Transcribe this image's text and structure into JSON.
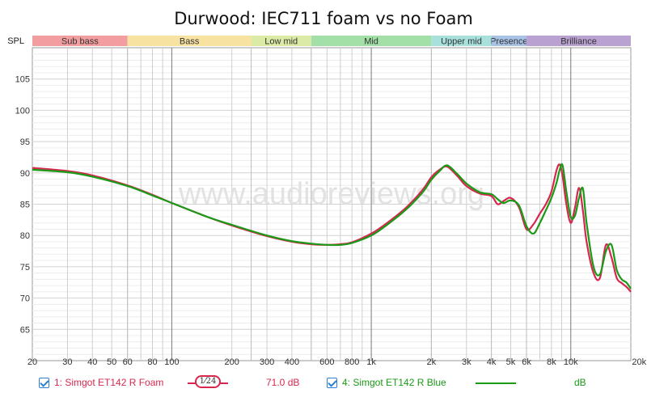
{
  "chart_data": {
    "type": "line",
    "title": "Durwood: IEC711 foam vs no Foam",
    "ylabel": "SPL",
    "xlabel": "",
    "xscale": "log",
    "xlim": [
      20,
      20000
    ],
    "ylim": [
      60,
      110
    ],
    "yticks": [
      65,
      70,
      75,
      80,
      85,
      90,
      95,
      100,
      105
    ],
    "xticks": [
      {
        "v": 20,
        "label": "20"
      },
      {
        "v": 30,
        "label": "30"
      },
      {
        "v": 40,
        "label": "40"
      },
      {
        "v": 50,
        "label": "50"
      },
      {
        "v": 60,
        "label": "60"
      },
      {
        "v": 80,
        "label": "80"
      },
      {
        "v": 100,
        "label": "100"
      },
      {
        "v": 200,
        "label": "200"
      },
      {
        "v": 300,
        "label": "300"
      },
      {
        "v": 400,
        "label": "400"
      },
      {
        "v": 600,
        "label": "600"
      },
      {
        "v": 800,
        "label": "800"
      },
      {
        "v": 1000,
        "label": "1k"
      },
      {
        "v": 2000,
        "label": "2k"
      },
      {
        "v": 3000,
        "label": "3k"
      },
      {
        "v": 4000,
        "label": "4k"
      },
      {
        "v": 5000,
        "label": "5k"
      },
      {
        "v": 6000,
        "label": "6k"
      },
      {
        "v": 8000,
        "label": "8k"
      },
      {
        "v": 10000,
        "label": "10k"
      },
      {
        "v": 20000,
        "label": "20kHz"
      }
    ],
    "bands": [
      {
        "label": "Sub bass",
        "from": 20,
        "to": 60,
        "color": "#f29ea0"
      },
      {
        "label": "Bass",
        "from": 60,
        "to": 250,
        "color": "#f7e2a2"
      },
      {
        "label": "Low mid",
        "from": 250,
        "to": 500,
        "color": "#dbeaa4"
      },
      {
        "label": "Mid",
        "from": 500,
        "to": 2000,
        "color": "#a3e0a8"
      },
      {
        "label": "Upper mid",
        "from": 2000,
        "to": 4000,
        "color": "#a8e0dc"
      },
      {
        "label": "Presence",
        "from": 4000,
        "to": 6000,
        "color": "#a8c2e6"
      },
      {
        "label": "Brilliance",
        "from": 6000,
        "to": 20000,
        "color": "#b9a2d2"
      }
    ],
    "watermark": "www.audioreviews.org",
    "series": [
      {
        "name": "1: Simgot ET142 R Foam",
        "color": "#d6284e",
        "x": [
          20,
          30,
          40,
          60,
          80,
          100,
          150,
          200,
          300,
          400,
          500,
          600,
          700,
          800,
          1000,
          1200,
          1500,
          1800,
          2000,
          2200,
          2400,
          2700,
          3000,
          3500,
          4000,
          4300,
          4600,
          5000,
          5500,
          6000,
          6500,
          7000,
          7500,
          8000,
          8500,
          8800,
          9100,
          9500,
          10000,
          10500,
          11000,
          11500,
          12000,
          13000,
          14000,
          15000,
          16000,
          17000,
          18000,
          19000,
          20000
        ],
        "y": [
          90.8,
          90.3,
          89.6,
          88.0,
          86.5,
          85.2,
          83.0,
          81.6,
          79.9,
          79.0,
          78.6,
          78.5,
          78.6,
          78.9,
          80.3,
          82.0,
          84.5,
          87.2,
          89.3,
          90.5,
          91.0,
          89.5,
          87.9,
          86.7,
          86.3,
          85.0,
          85.5,
          86.0,
          84.5,
          81.0,
          81.8,
          83.5,
          85.0,
          87.0,
          90.5,
          91.3,
          89.5,
          85.0,
          82.0,
          84.5,
          87.6,
          84.0,
          79.0,
          74.0,
          73.2,
          78.5,
          76.5,
          73.2,
          72.4,
          71.8,
          71.0
        ]
      },
      {
        "name": "4: Simgot ET142 R Blue",
        "color": "#1a9a17",
        "x": [
          20,
          30,
          40,
          60,
          80,
          100,
          150,
          200,
          300,
          400,
          500,
          600,
          700,
          800,
          1000,
          1200,
          1500,
          1800,
          2000,
          2200,
          2400,
          2700,
          3000,
          3500,
          4000,
          4300,
          4600,
          5000,
          5500,
          6000,
          6500,
          7000,
          7500,
          8000,
          8500,
          8800,
          9100,
          9500,
          10000,
          10500,
          11000,
          11500,
          12000,
          13000,
          14000,
          15000,
          16000,
          17000,
          18000,
          19000,
          20000
        ],
        "y": [
          90.5,
          90.1,
          89.4,
          87.9,
          86.4,
          85.2,
          83.0,
          81.7,
          80.0,
          79.1,
          78.7,
          78.5,
          78.5,
          78.8,
          80.0,
          81.7,
          84.2,
          86.8,
          88.9,
          90.3,
          91.2,
          89.8,
          88.3,
          86.9,
          86.6,
          85.8,
          85.2,
          85.6,
          84.8,
          81.5,
          80.3,
          82.0,
          84.0,
          86.0,
          88.5,
          90.5,
          91.2,
          87.0,
          83.0,
          83.2,
          86.0,
          87.5,
          82.0,
          75.0,
          73.8,
          77.5,
          78.5,
          74.5,
          73.0,
          72.5,
          71.5
        ]
      }
    ]
  },
  "legend": {
    "item1_label": "1: Simgot ET142 R Foam",
    "item1_color": "#d6284e",
    "item1_smoothing": "1⁄24",
    "item1_level": "71.0 dB",
    "item2_label": "4: Simgot ET142 R Blue",
    "item2_color": "#1a9a17",
    "item2_level": "dB"
  }
}
